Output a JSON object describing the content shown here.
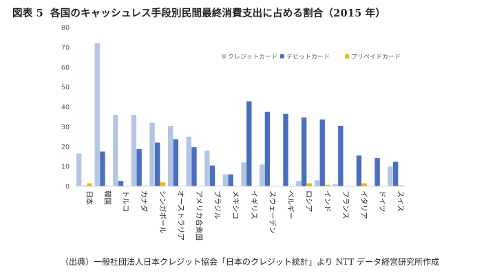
{
  "figure": {
    "label": "図表 5",
    "title": "各国のキャッシュレス手段別民間最終消費支出に占める割合（2015 年）"
  },
  "source": "（出典）一般社団法人日本クレジット協会「日本のクレジット統計」より NTT データ経営研究所作成",
  "chart_data": {
    "type": "bar",
    "title": "各国のキャッシュレス手段別民間最終消費支出に占める割合（2015 年）",
    "xlabel": "",
    "ylabel": "",
    "ylim": [
      0,
      80
    ],
    "yticks": [
      0,
      10,
      20,
      30,
      40,
      50,
      60,
      70,
      80
    ],
    "grid": false,
    "legend_position": "top-right",
    "categories": [
      "日本",
      "韓国",
      "トルコ",
      "カナダ",
      "シンガポール",
      "オーストラリア",
      "アメリカ合衆国",
      "ブラジル",
      "メキシコ",
      "イギリス",
      "スウェーデン",
      "ベルギー",
      "ロシア",
      "インド",
      "フランス",
      "イタリア",
      "ドイツ",
      "スイス"
    ],
    "series": [
      {
        "name": "クレジットカード",
        "color": "#b4c5e4",
        "values": [
          16.5,
          72.0,
          36.0,
          36.0,
          32.0,
          30.5,
          25.0,
          18.0,
          6.0,
          12.0,
          11.0,
          0.2,
          2.7,
          3.0,
          1.0,
          0.2,
          0.2,
          10.0
        ]
      },
      {
        "name": "デビットカード",
        "color": "#4a6fbe",
        "values": [
          0.3,
          17.5,
          2.7,
          18.7,
          22.0,
          23.7,
          19.7,
          10.5,
          6.0,
          42.8,
          37.5,
          36.5,
          34.7,
          33.7,
          30.5,
          15.5,
          14.2,
          12.3
        ]
      },
      {
        "name": "プリペイドカード",
        "color": "#f0b400",
        "values": [
          1.5,
          0.3,
          0.2,
          0.2,
          2.0,
          0.2,
          0.2,
          0.2,
          0.2,
          0.2,
          0.2,
          0.2,
          1.5,
          0.8,
          0.2,
          1.5,
          0.2,
          0.5
        ]
      }
    ]
  }
}
